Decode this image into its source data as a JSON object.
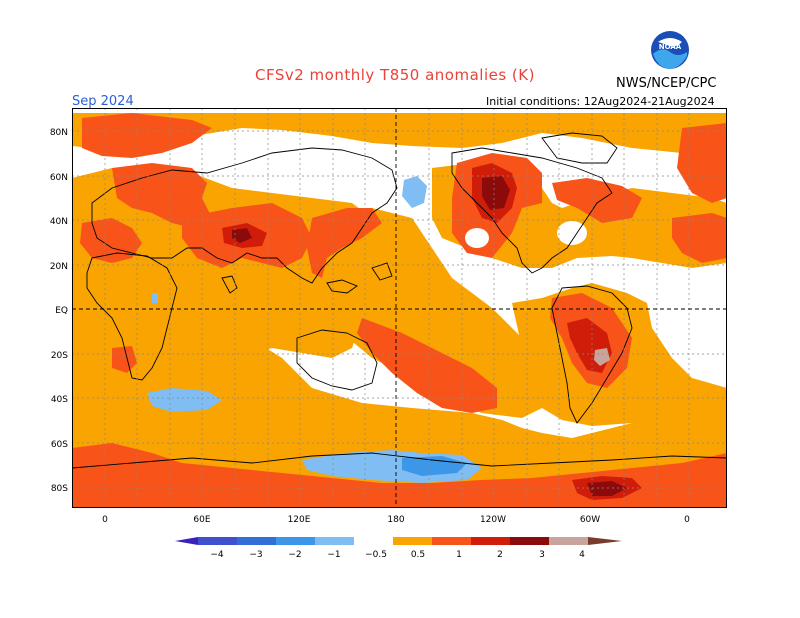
{
  "header": {
    "title": "CFSv2 monthly T850 anomalies (K)",
    "org": "NWS/NCEP/CPC",
    "month": "Sep 2024",
    "init": "Initial conditions: 12Aug2024-21Aug2024",
    "logo_text": "NOAA"
  },
  "axes": {
    "lat_labels": [
      "80N",
      "60N",
      "40N",
      "20N",
      "EQ",
      "20S",
      "40S",
      "60S",
      "80S"
    ],
    "lon_labels": [
      "0",
      "60E",
      "120E",
      "180",
      "120W",
      "60W",
      "0"
    ]
  },
  "legend": {
    "tick_labels": [
      "−4",
      "−3",
      "−2",
      "−1",
      "−0.5",
      "0.5",
      "1",
      "2",
      "3",
      "4"
    ],
    "colors": [
      "#3a22b8",
      "#3f4fcf",
      "#2f6fd6",
      "#3d97e8",
      "#7fbdf2",
      "#ffffff",
      "#f9a400",
      "#f8541a",
      "#d01d0a",
      "#8b0b0b",
      "#c9a49c",
      "#7a3a2c"
    ]
  },
  "colors": {
    "anomaly_05_1": "#f9a400",
    "anomaly_1_2": "#f8541a",
    "anomaly_2_3": "#d01d0a",
    "anomaly_3_4": "#8b0b0b",
    "anomaly_gt4": "#c9a49c",
    "negative_05_1": "#7fbdf2",
    "negative_1_2": "#3d97e8",
    "title_color": "#e8433a",
    "month_color": "#2a5fd6"
  }
}
